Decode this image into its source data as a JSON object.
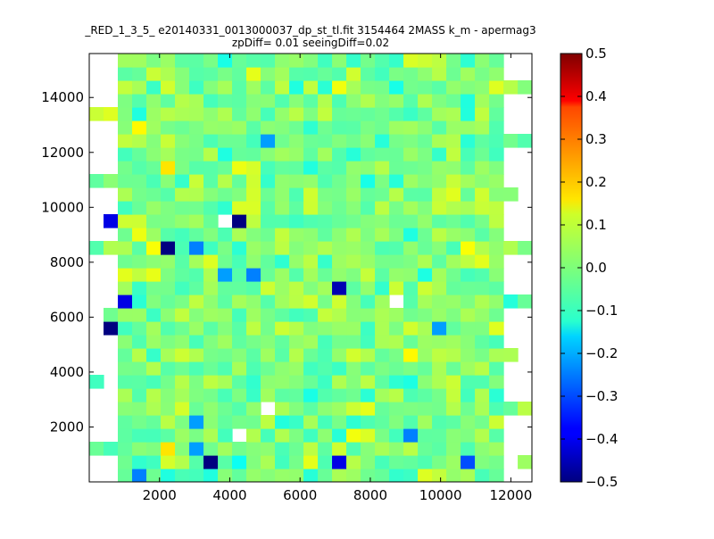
{
  "chart_data": {
    "type": "heatmap",
    "title_line1": "_RED_1_3_5_ e20140331_0013000037_dp_st_tl.fit 3154464 2MASS k_m - apermag3",
    "title_line2": "zpDiff= 0.01 seeingDiff=0.02",
    "xlabel": "",
    "ylabel": "",
    "xlim": [
      0,
      12600
    ],
    "ylim": [
      0,
      15600
    ],
    "x_ticks": [
      2000,
      4000,
      6000,
      8000,
      10000,
      12000
    ],
    "x_tick_labels": [
      "2000",
      "4000",
      "6000",
      "8000",
      "10000",
      "12000"
    ],
    "y_ticks": [
      2000,
      4000,
      6000,
      8000,
      10000,
      12000,
      14000
    ],
    "y_tick_labels": [
      "2000",
      "4000",
      "6000",
      "8000",
      "10000",
      "12000",
      "14000"
    ],
    "cells_x": 31,
    "cells_y": 32,
    "cell_data_width": 406.5,
    "cell_data_height": 487.5,
    "colormap": "jet",
    "vmin": -0.5,
    "vmax": 0.5,
    "colorbar_ticks": [
      0.5,
      0.4,
      0.3,
      0.2,
      0.1,
      0.0,
      -0.1,
      -0.2,
      -0.3,
      -0.4,
      -0.5
    ],
    "colorbar_tick_labels": [
      "0.5",
      "0.4",
      "0.3",
      "0.2",
      "0.1",
      "0.0",
      "−0.1",
      "−0.2",
      "−0.3",
      "−0.4",
      "−0.5"
    ],
    "empty_cell_color": "#ffffff",
    "notable_cells": [
      {
        "x": 3453,
        "y": 731,
        "value": -0.5
      },
      {
        "x": 4266,
        "y": 9506,
        "value": -0.5
      },
      {
        "x": 2234,
        "y": 8531,
        "value": -0.5
      },
      {
        "x": 609,
        "y": 5606,
        "value": -0.5
      },
      {
        "x": 7172,
        "y": 6825,
        "value": -0.45
      },
      {
        "x": 7047,
        "y": 731,
        "value": -0.4
      },
      {
        "x": 609,
        "y": 9506,
        "value": -0.4
      },
      {
        "x": 1016,
        "y": 6338,
        "value": -0.4
      },
      {
        "x": 10922,
        "y": 731,
        "value": -0.3
      },
      {
        "x": 3047,
        "y": 8531,
        "value": -0.25
      },
      {
        "x": 4672,
        "y": 7556,
        "value": -0.25
      },
      {
        "x": 3860,
        "y": 7556,
        "value": -0.22
      },
      {
        "x": 1422,
        "y": 244,
        "value": -0.25
      },
      {
        "x": 9297,
        "y": 1706,
        "value": -0.25
      },
      {
        "x": 5078,
        "y": 12188,
        "value": -0.22
      },
      {
        "x": 3047,
        "y": 2194,
        "value": -0.22
      },
      {
        "x": 3047,
        "y": 1219,
        "value": -0.22
      },
      {
        "x": 10109,
        "y": 5606,
        "value": -0.22
      },
      {
        "x": 2234,
        "y": 11213,
        "value": 0.15
      },
      {
        "x": 1422,
        "y": 12675,
        "value": 0.13
      },
      {
        "x": 2234,
        "y": 1219,
        "value": 0.15
      },
      {
        "x": 9297,
        "y": 4631,
        "value": 0.13
      },
      {
        "x": 10922,
        "y": 8531,
        "value": 0.12
      },
      {
        "x": 8078,
        "y": 2681,
        "value": 0.1
      },
      {
        "x": 1828,
        "y": 8531,
        "value": 0.12
      }
    ],
    "empty_cells": [
      {
        "x": 3860,
        "y": 9506
      },
      {
        "x": 8891,
        "y": 6338
      },
      {
        "x": 5078,
        "y": 2681
      },
      {
        "x": 4266,
        "y": 1706
      },
      {
        "x": 12547,
        "y": 14625
      },
      {
        "x": 12547,
        "y": 10725
      }
    ],
    "seed": 3154464
  }
}
